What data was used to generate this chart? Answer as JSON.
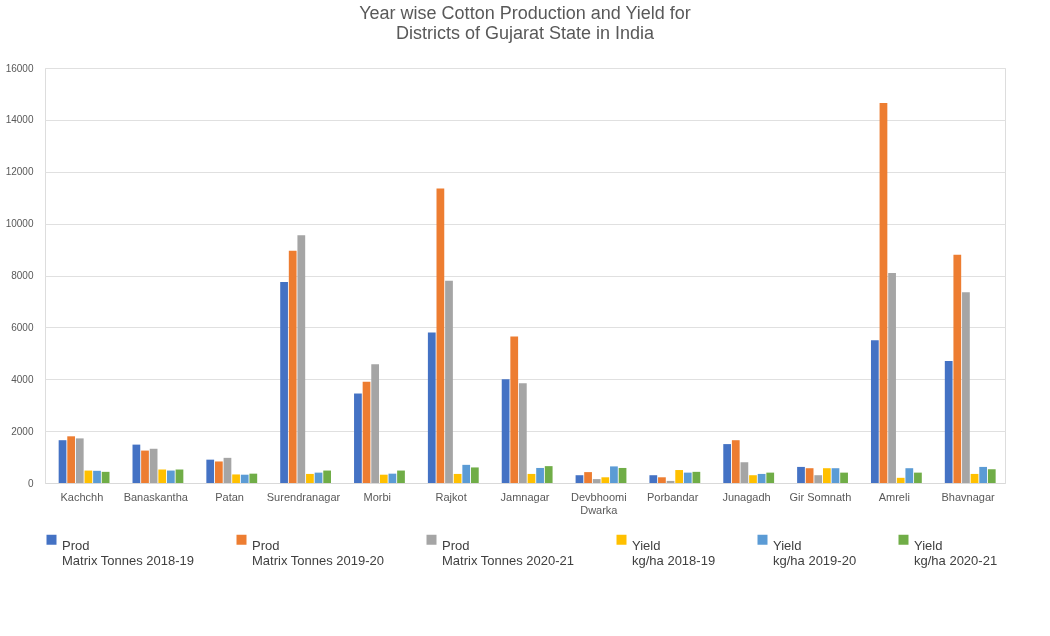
{
  "chart_data": {
    "type": "bar",
    "title": [
      "Year wise Cotton Production and Yield for",
      "Districts of Gujarat State in India"
    ],
    "categories": [
      "Kachchh",
      "Banaskantha",
      "Patan",
      "Surendranagar",
      "Morbi",
      "Rajkot",
      "Jamnagar",
      "Devbhoomi\nDwarka",
      "Porbandar",
      "Junagadh",
      "Gir Somnath",
      "Amreli",
      "Bhavnagar"
    ],
    "series": [
      {
        "name": "Prod\nMatrix Tonnes 2018-19",
        "color": "#4472c4",
        "values": [
          1650,
          1480,
          900,
          7750,
          3450,
          5800,
          4000,
          300,
          300,
          1500,
          620,
          5500,
          4700
        ]
      },
      {
        "name": "Prod\nMatrix Tonnes 2019-20",
        "color": "#ed7d31",
        "values": [
          1800,
          1250,
          830,
          8950,
          3900,
          11350,
          5650,
          420,
          220,
          1650,
          570,
          14650,
          8800
        ]
      },
      {
        "name": "Prod\nMatrix Tonnes 2020-21",
        "color": "#a5a5a5",
        "values": [
          1720,
          1320,
          970,
          9550,
          4580,
          7800,
          3850,
          150,
          80,
          800,
          300,
          8100,
          7350
        ]
      },
      {
        "name": "Yield\nkg/ha 2018-19",
        "color": "#ffc000",
        "values": [
          480,
          520,
          330,
          350,
          320,
          350,
          350,
          220,
          500,
          300,
          570,
          200,
          350
        ]
      },
      {
        "name": "Yield\nkg/ha 2019-20",
        "color": "#5b9bd5",
        "values": [
          470,
          480,
          320,
          400,
          360,
          700,
          580,
          640,
          400,
          350,
          570,
          570,
          620
        ]
      },
      {
        "name": "Yield\nkg/ha 2020-21",
        "color": "#70ad47",
        "values": [
          430,
          520,
          360,
          480,
          480,
          600,
          650,
          580,
          430,
          400,
          400,
          400,
          530
        ]
      }
    ],
    "ylim": [
      0,
      16000
    ],
    "yticks": [
      0,
      2000,
      4000,
      6000,
      8000,
      10000,
      12000,
      14000,
      16000
    ],
    "grid": "y",
    "legend": "bottom"
  }
}
